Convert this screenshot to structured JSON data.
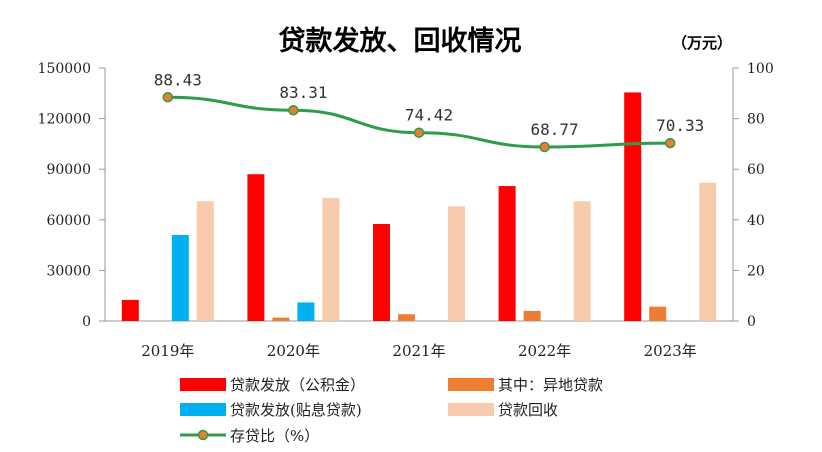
{
  "chart_data": {
    "type": "bar",
    "title": "贷款发放、回收情况",
    "unit": "（万元）",
    "categories": [
      "2019年",
      "2020年",
      "2021年",
      "2022年",
      "2023年"
    ],
    "left_axis": {
      "min": 0,
      "max": 150000,
      "ticks": [
        "0",
        "30000",
        "60000",
        "90000",
        "120000",
        "150000"
      ]
    },
    "right_axis": {
      "min": 0,
      "max": 100,
      "ticks": [
        "0",
        "20",
        "40",
        "60",
        "80",
        "100"
      ]
    },
    "series": [
      {
        "name": "贷款发放（公积金）",
        "type": "bar",
        "axis": "left",
        "color": "#ff0000",
        "values": [
          12500,
          87000,
          57500,
          80000,
          135500
        ]
      },
      {
        "name": "其中：异地贷款",
        "type": "bar",
        "axis": "left",
        "color": "#ed7d31",
        "values": [
          0,
          2000,
          4000,
          6000,
          8500
        ]
      },
      {
        "name": "贷款发放(贴息贷款)",
        "type": "bar",
        "axis": "left",
        "color": "#00b0f0",
        "values": [
          51000,
          11000,
          0,
          0,
          0
        ]
      },
      {
        "name": "贷款回收",
        "type": "bar",
        "axis": "left",
        "color": "#f8cbad",
        "values": [
          71000,
          73000,
          68000,
          71000,
          82000
        ]
      },
      {
        "name": "存贷比（%）",
        "type": "line",
        "axis": "right",
        "color": "#2e9c4a",
        "marker_color": "#ed7d31",
        "values": [
          88.43,
          83.31,
          74.42,
          68.77,
          70.33
        ],
        "labels": [
          "88.43",
          "83.31",
          "74.42",
          "68.77",
          "70.33"
        ]
      }
    ],
    "legend": {
      "position": "bottom",
      "order": [
        0,
        1,
        2,
        3,
        4
      ]
    },
    "grid": false
  }
}
